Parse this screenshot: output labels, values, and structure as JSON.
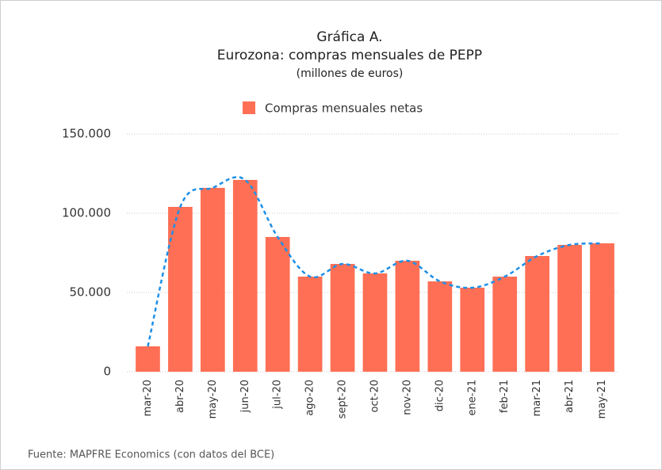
{
  "chart_data": {
    "type": "bar",
    "title": "Gráfica A.",
    "subtitle": "Eurozona: compras mensuales de PEPP",
    "unit_label": "(millones de euros)",
    "source": "Fuente: MAPFRE Economics (con datos del BCE)",
    "categories": [
      "mar-20",
      "abr-20",
      "may-20",
      "jun-20",
      "jul-20",
      "ago-20",
      "sept-20",
      "oct-20",
      "nov-20",
      "dic-20",
      "ene-21",
      "feb-21",
      "mar-21",
      "abr-21",
      "may-21"
    ],
    "series": [
      {
        "name": "Compras mensuales netas",
        "color": "#ff6f55",
        "values": [
          16000,
          104000,
          116000,
          121000,
          85000,
          60000,
          68000,
          62000,
          70000,
          57000,
          53000,
          60000,
          73000,
          80000,
          81000
        ]
      }
    ],
    "trend_line": {
      "color": "#1e8fe6",
      "style": "dashed"
    },
    "ylim": [
      0,
      150000
    ],
    "yticks": [
      0,
      {
        "value": 50000,
        "label": "50.000"
      },
      {
        "value": 100000,
        "label": "100.000"
      },
      {
        "value": 150000,
        "label": "150.000"
      }
    ],
    "grid": true
  }
}
